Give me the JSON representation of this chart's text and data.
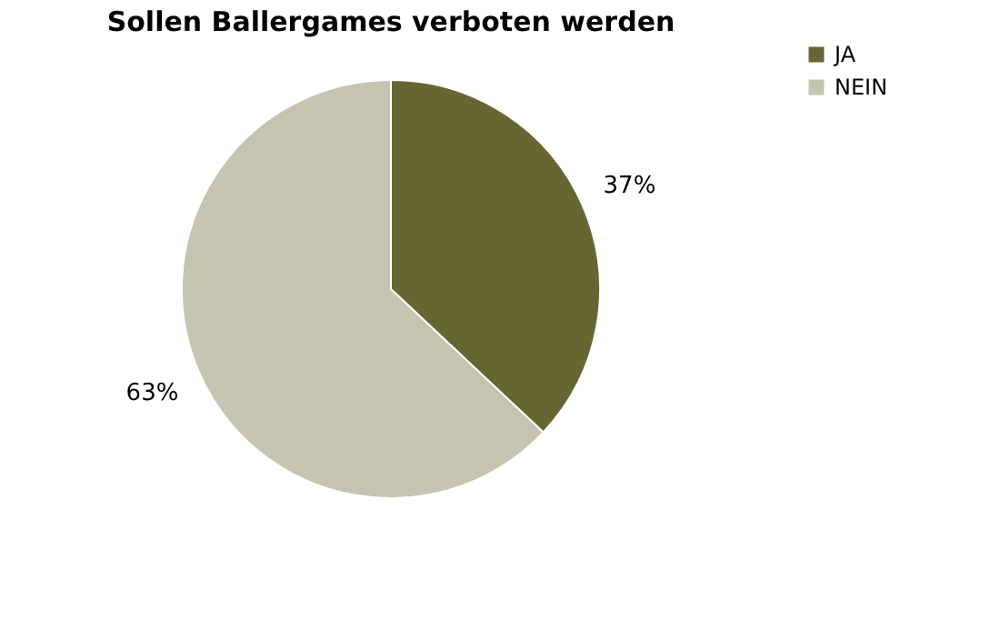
{
  "chart_data": {
    "type": "pie",
    "title": "Sollen Ballergames verboten werden",
    "categories": [
      "JA",
      "NEIN"
    ],
    "values": [
      37,
      63
    ],
    "colors": [
      "#666633",
      "#c4c4b0"
    ],
    "value_labels": [
      "37%",
      "63%"
    ],
    "legend": "right"
  }
}
